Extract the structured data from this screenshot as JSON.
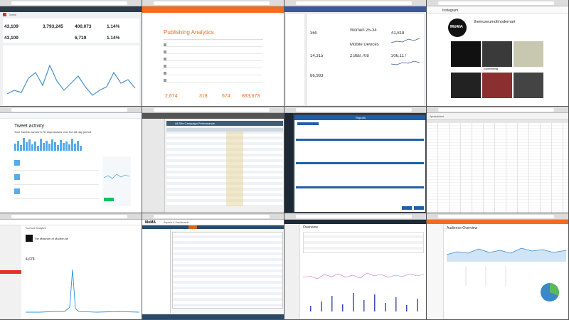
{
  "tiles": {
    "t1": {
      "brand": "Tumblr",
      "stats": [
        {
          "label": "FOLLOWERS",
          "value": "43,109"
        },
        {
          "label": "IMPRESSIONS",
          "value": "3,793,245"
        },
        {
          "label": "ENGAGEMENTS",
          "value": "400,073"
        },
        {
          "label": "ENGAGEMENT RATE",
          "value": "1.14%"
        },
        {
          "label": "",
          "value": "43,109"
        },
        {
          "label": "",
          "value": ""
        },
        {
          "label": "",
          "value": "6,719"
        },
        {
          "label": "",
          "value": "1.14%"
        }
      ],
      "accent": "#4a90c9"
    },
    "t2": {
      "title": "Publishing Analytics",
      "totals": [
        "2,674",
        "318",
        "674",
        "883,673"
      ],
      "accent": "#f26c1d"
    },
    "t3": {
      "metrics": [
        {
          "label": "Unique Visitors",
          "value": "360"
        },
        {
          "label": "Top Fan",
          "value": "Women 25-34"
        },
        {
          "label": "Page Views",
          "value": "41,818"
        },
        {
          "label": "Page Likes",
          "value": "14,315"
        },
        {
          "label": "Daily Reach",
          "value": "2,868,708"
        },
        {
          "label": "Post Reach",
          "value": "306,117"
        },
        {
          "label": "Mobile Devices",
          "value": "Mobile Devices"
        },
        {
          "label": "Check-ins",
          "value": "86,983"
        }
      ],
      "accent": "#3b5998"
    },
    "t4": {
      "app": "Instagram",
      "username": "themuseumofmodernart",
      "logo": "MoMA",
      "caption": "Experimental"
    },
    "t5": {
      "heading": "Tweet activity",
      "summary": "Your Tweets earned 6.7K impressions over the 28 day period",
      "accent": "#55acee"
    },
    "t6": {
      "title": "All Site Campaign Performance"
    },
    "t7": {
      "title": "Reports"
    },
    "t8": {
      "title": "Spreadsheet"
    },
    "t9": {
      "title": "YouTube Analytics",
      "channel": "The Museum of Modern Art",
      "views": "4,678",
      "accent": "#e52d27"
    },
    "t10": {
      "brand": "MoMA",
      "title": "Reports & Dashboards"
    },
    "t11": {
      "title": "Overview"
    },
    "t12": {
      "title": "Audience Overview"
    }
  }
}
